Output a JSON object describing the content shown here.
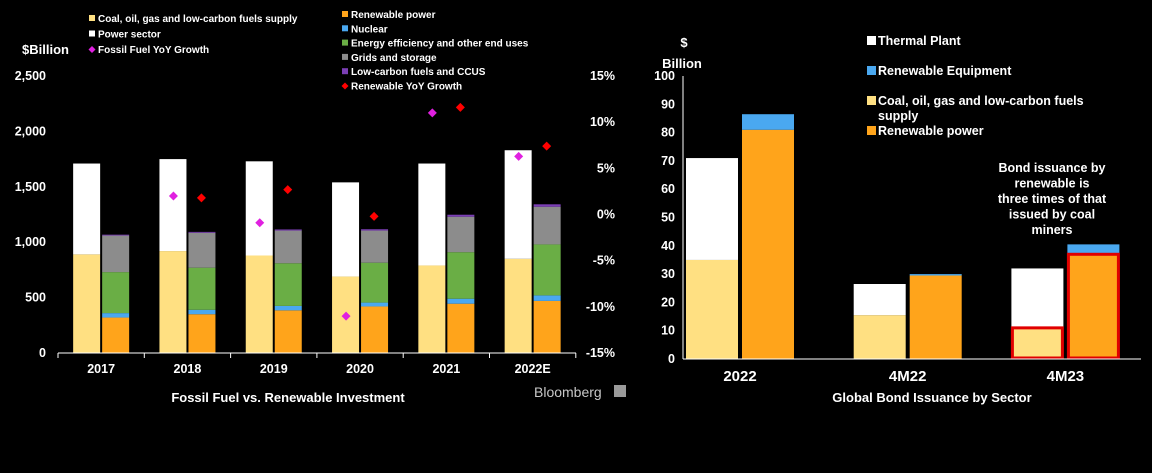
{
  "chart_data": [
    {
      "type": "bar",
      "title": "Fossil Fuel vs. Renewable Investment",
      "ylabel": "$Billion",
      "ylim": [
        0,
        2500
      ],
      "y_ticks": [
        "0",
        "500",
        "1,000",
        "1,500",
        "2,000",
        "2,500"
      ],
      "y2lim": [
        -15,
        15
      ],
      "y2_ticks": [
        "-15%",
        "-10%",
        "-5%",
        "0%",
        "5%",
        "10%",
        "15%"
      ],
      "categories": [
        "2017",
        "2018",
        "2019",
        "2020",
        "2021",
        "2022E"
      ],
      "fossil_stack": [
        {
          "name": "Coal, oil,  gas and low-carbon fuels supply",
          "color": "#FFE082",
          "values": [
            890,
            920,
            880,
            690,
            790,
            850
          ]
        },
        {
          "name": "Power sector",
          "color": "#FFFFFF",
          "values": [
            820,
            830,
            850,
            850,
            920,
            980
          ]
        }
      ],
      "renewable_stack": [
        {
          "name": "Renewable power",
          "color": "#FFA41B",
          "values": [
            320,
            350,
            385,
            420,
            445,
            470
          ]
        },
        {
          "name": "Nuclear",
          "color": "#4AA8F0",
          "values": [
            40,
            40,
            40,
            35,
            45,
            50
          ]
        },
        {
          "name": "Energy efficiency and other end uses",
          "color": "#6AAE45",
          "values": [
            370,
            380,
            385,
            360,
            420,
            460
          ]
        },
        {
          "name": "Grids and storage",
          "color": "#8C8C8C",
          "values": [
            330,
            315,
            295,
            290,
            320,
            340
          ]
        },
        {
          "name": "Low-carbon fuels and CCUS",
          "color": "#7B3FB5",
          "values": [
            8,
            8,
            10,
            12,
            18,
            22
          ]
        }
      ],
      "line_points": [
        {
          "name": "Fossil Fuel YoY Growth",
          "color": "#E020E0",
          "marker": "diamond",
          "values": [
            null,
            2.0,
            -0.9,
            -11.0,
            11.0,
            6.3
          ]
        },
        {
          "name": "Renewable YoY Growth",
          "color": "#FF0000",
          "marker": "diamond",
          "values": [
            null,
            1.8,
            2.7,
            -0.2,
            11.6,
            7.4
          ]
        }
      ],
      "legend": {
        "left": [
          {
            "label": "Coal, oil,  gas and low-carbon fuels supply",
            "color": "#FFE082",
            "shape": "square"
          },
          {
            "label": "Power sector",
            "color": "#FFFFFF",
            "shape": "square"
          },
          {
            "label": "Fossil Fuel YoY Growth",
            "color": "#E020E0",
            "shape": "diamond"
          }
        ],
        "right": [
          {
            "label": "Renewable power",
            "color": "#FFA41B",
            "shape": "square"
          },
          {
            "label": "Nuclear",
            "color": "#4AA8F0",
            "shape": "square"
          },
          {
            "label": "Energy efficiency and other end uses",
            "color": "#6AAE45",
            "shape": "square"
          },
          {
            "label": "Grids and storage",
            "color": "#8C8C8C",
            "shape": "square"
          },
          {
            "label": "Low-carbon fuels and CCUS",
            "color": "#7B3FB5",
            "shape": "square"
          },
          {
            "label": "Renewable YoY Growth",
            "color": "#FF0000",
            "shape": "diamond"
          }
        ]
      },
      "source": "Bloomberg"
    },
    {
      "type": "bar",
      "title": "Global Bond Issuance by Sector",
      "ylabel_line1": "$",
      "ylabel_line2": "Billion",
      "ylim": [
        0,
        100
      ],
      "y_ticks": [
        "0",
        "10",
        "20",
        "30",
        "40",
        "50",
        "60",
        "70",
        "80",
        "90",
        "100"
      ],
      "categories": [
        "2022",
        "4M22",
        "4M23"
      ],
      "fossil_stack": [
        {
          "name": "Coal, oil,  gas and low-carbon fuels supply",
          "color": "#FFE082",
          "values": [
            35,
            15.5,
            11
          ]
        },
        {
          "name": "Thermal Plant",
          "color": "#FFFFFF",
          "values": [
            36,
            11,
            21
          ]
        }
      ],
      "renewable_stack": [
        {
          "name": "Renewable power",
          "color": "#FFA41B",
          "values": [
            81,
            29.5,
            37
          ]
        },
        {
          "name": "Renewable Equipment",
          "color": "#4AA8F0",
          "values": [
            5.5,
            0.5,
            3.5
          ]
        }
      ],
      "highlighted_category": "4M23",
      "highlight_color": "#E00000",
      "annotation": [
        "Bond issuance by",
        "renewable is",
        "three times of that",
        "issued by coal",
        "miners"
      ],
      "legend": [
        {
          "label": "Thermal Plant",
          "color": "#FFFFFF"
        },
        {
          "label": "Renewable Equipment",
          "color": "#4AA8F0"
        },
        {
          "label": "Coal, oil,  gas and low-carbon fuels",
          "label_line2": "supply",
          "color": "#FFE082"
        },
        {
          "label": "Renewable power",
          "color": "#FFA41B"
        }
      ]
    }
  ]
}
